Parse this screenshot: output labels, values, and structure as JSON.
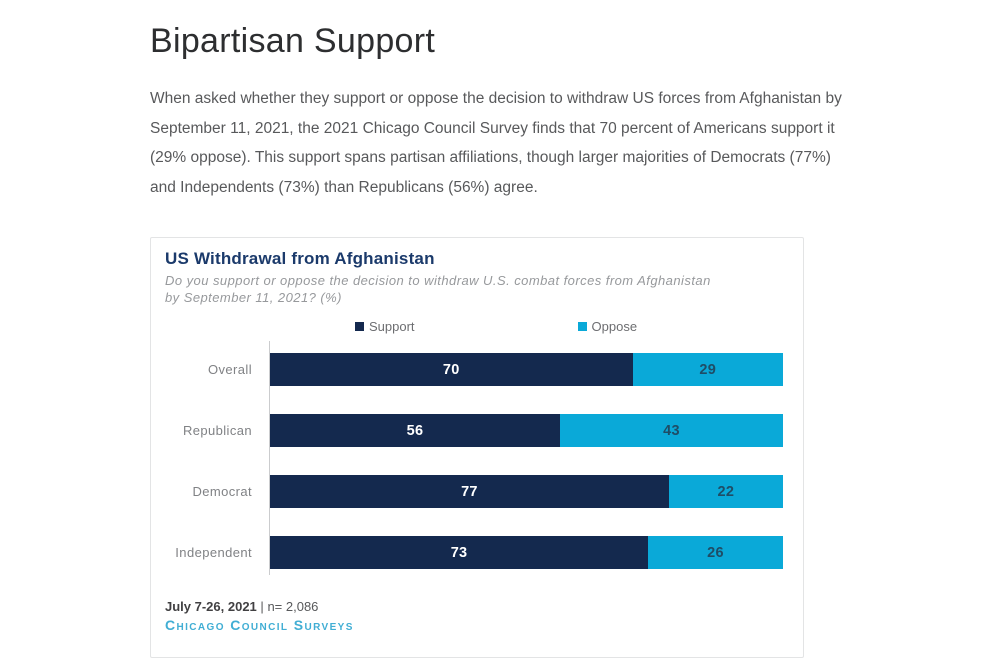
{
  "page": {
    "heading": "Bipartisan Support",
    "paragraph": "When asked whether they support or oppose the decision to withdraw US forces from Afghanistan by September 11, 2021, the 2021 Chicago Council Survey finds that 70 percent of Americans support it (29% oppose). This support spans partisan affiliations, though larger majorities of Democrats (77%) and Independents (73%) than Republicans (56%) agree."
  },
  "chart_card": {
    "title": "US Withdrawal from Afghanistan",
    "subtitle": "Do you support or oppose the decision to withdraw U.S. combat forces from Afghanistan by September 11, 2021? (%)",
    "footer": {
      "date_range": "July 7-26, 2021",
      "separator": "|",
      "sample_size": "n= 2,086",
      "source": "Chicago Council Surveys"
    }
  },
  "chart_data": {
    "type": "bar",
    "orientation": "horizontal",
    "stacked": true,
    "title": "US Withdrawal from Afghanistan",
    "subtitle": "Do you support or oppose the decision to withdraw U.S. combat forces from Afghanistan by September 11, 2021? (%)",
    "categories": [
      "Overall",
      "Republican",
      "Democrat",
      "Independent"
    ],
    "series": [
      {
        "name": "Support",
        "color": "#14294e",
        "value_label_color": "#ffffff",
        "values": [
          70,
          56,
          77,
          73
        ]
      },
      {
        "name": "Oppose",
        "color": "#0aa9d8",
        "value_label_color": "#1f4d66",
        "values": [
          29,
          43,
          22,
          26
        ]
      }
    ],
    "xlim": [
      0,
      100
    ],
    "value_labels": true,
    "legend_position": "top",
    "grid": false
  },
  "colors": {
    "support_navy": "#14294e",
    "oppose_cyan": "#0aa9d8",
    "title_navy": "#1b3a6b",
    "source_link_cyan": "#41aed4",
    "body_text": "#58595b",
    "axis_line": "#cbccce",
    "card_border": "#e3e4e5"
  }
}
